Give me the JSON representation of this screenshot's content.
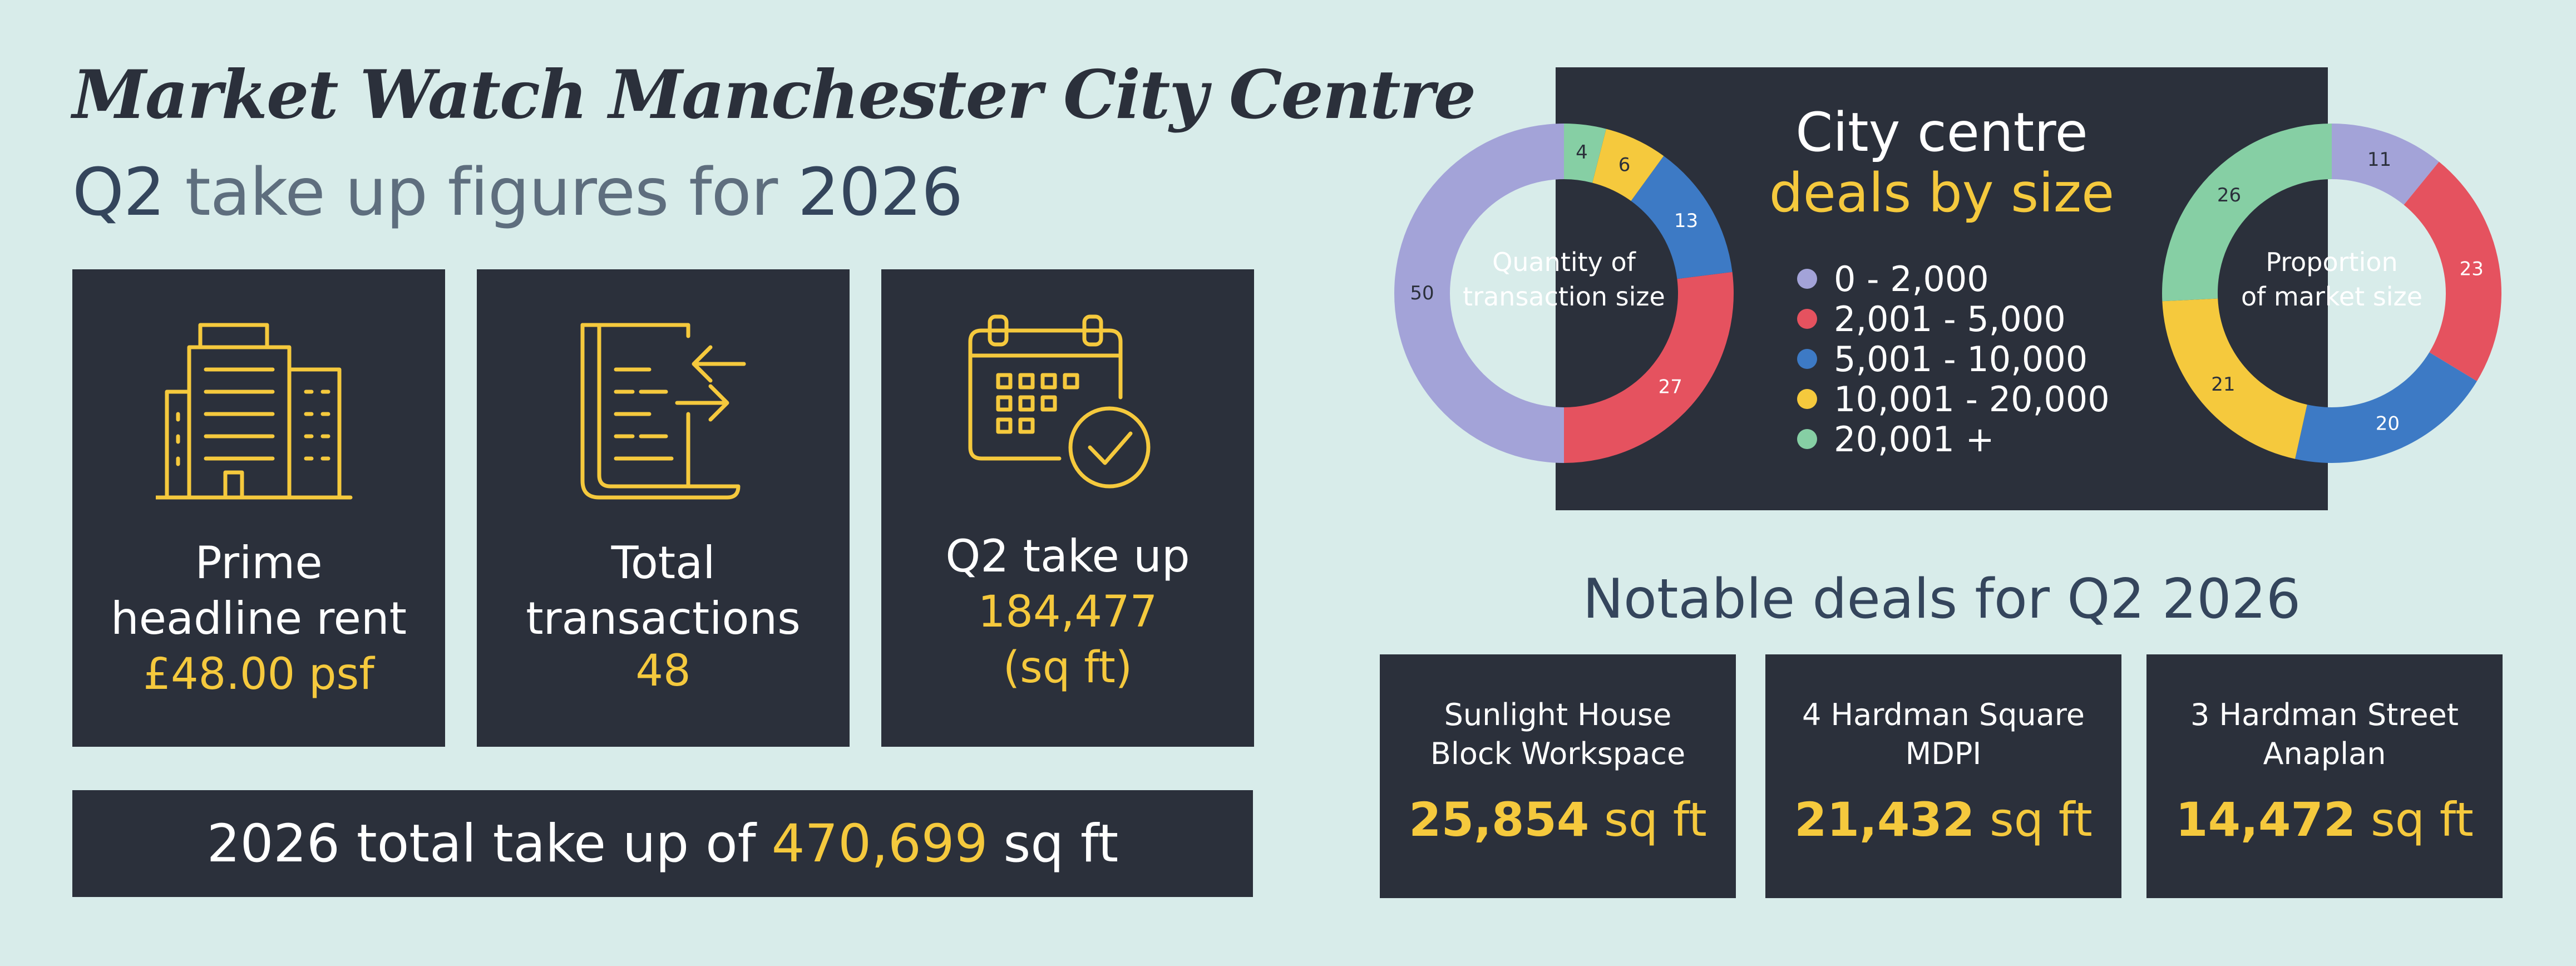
{
  "header": {
    "title": "Market Watch Manchester City Centre",
    "subtitle_prefix": "Q2",
    "subtitle_middle": "take up figures for",
    "subtitle_year": "2026"
  },
  "stats": {
    "rent": {
      "label_line1": "Prime",
      "label_line2": "headline rent",
      "value": "£48.00 psf",
      "icon": "office-buildings-icon"
    },
    "transactions": {
      "label_line1": "Total",
      "label_line2": "transactions",
      "value": "48",
      "icon": "document-exchange-icon"
    },
    "takeup": {
      "label_line1": "Q2 take up",
      "value_line1": "184,477",
      "value_line2": "(sq ft)",
      "icon": "calendar-check-icon"
    }
  },
  "total": {
    "prefix": "2026 total take up of",
    "value": "470,699",
    "suffix": "sq ft"
  },
  "chart": {
    "title_line1": "City centre",
    "title_line2": "deals by size",
    "left_center_line1": "Quantity of",
    "left_center_line2": "transaction size",
    "right_center_line1": "Proportion",
    "right_center_line2": "of market size"
  },
  "chart_data": [
    {
      "type": "donut",
      "categories": [
        "0 - 2,000",
        "2,001 - 5,000",
        "5,001 - 10,000",
        "10,001 - 20,000",
        "20,001 +"
      ],
      "values": [
        50,
        27,
        13,
        6,
        4
      ],
      "direction": "counterclockwise-from-top"
    },
    {
      "type": "donut",
      "categories": [
        "0 - 2,000",
        "2,001 - 5,000",
        "5,001 - 10,000",
        "10,001 - 20,000",
        "20,001 +"
      ],
      "values": [
        11,
        23,
        20,
        21,
        26
      ],
      "direction": "clockwise-from-top"
    }
  ],
  "legend": [
    {
      "label": "0 - 2,000",
      "color": "#a3a3d8"
    },
    {
      "label": "2,001 - 5,000",
      "color": "#e5525f"
    },
    {
      "label": "5,001 - 10,000",
      "color": "#3d7ac5"
    },
    {
      "label": "10,001 - 20,000",
      "color": "#f5c93d"
    },
    {
      "label": "20,001 +",
      "color": "#86cfa4"
    }
  ],
  "notable": {
    "title": "Notable deals for Q2 2026",
    "deals": [
      {
        "line1": "Sunlight House",
        "line2": "Block Workspace",
        "size": "25,854",
        "unit": "sq ft"
      },
      {
        "line1": "4 Hardman Square",
        "line2": "MDPI",
        "size": "21,432",
        "unit": "sq ft"
      },
      {
        "line1": "3 Hardman Street",
        "line2": "Anaplan",
        "size": "14,472",
        "unit": "sq ft"
      }
    ]
  },
  "colors": {
    "background": "#d8ecea",
    "panel": "#2b303b",
    "accent": "#f5c93d",
    "heading": "#34455c"
  }
}
